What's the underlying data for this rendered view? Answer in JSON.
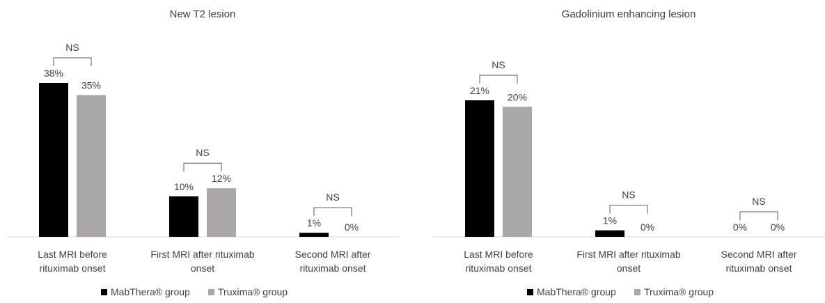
{
  "chart_data": [
    {
      "type": "bar",
      "title": "New T2 lesion",
      "categories": [
        "Last MRI before rituximab onset",
        "First MRI after rituximab onset",
        "Second MRI after rituximab onset"
      ],
      "category_lines": [
        [
          "Last MRI before",
          "rituximab onset"
        ],
        [
          "First MRI after rituximab",
          "onset"
        ],
        [
          "Second MRI after",
          "rituximab onset"
        ]
      ],
      "series": [
        {
          "name": "MabThera® group",
          "values": [
            38,
            10,
            1
          ],
          "labels": [
            "38%",
            "10%",
            "1%"
          ],
          "color": "#000000"
        },
        {
          "name": "Truxima® group",
          "values": [
            35,
            12,
            0
          ],
          "labels": [
            "35%",
            "12%",
            "0%"
          ],
          "color": "#ABA7A7"
        }
      ],
      "significance": [
        "NS",
        "NS",
        "NS"
      ],
      "unit": "%",
      "legend_position": "bottom",
      "grid": false,
      "ylim": [
        0,
        38
      ]
    },
    {
      "type": "bar",
      "title": "Gadolinium enhancing lesion",
      "categories": [
        "Last MRI before rituximab onset",
        "First MRI after rituximab onset",
        "Second MRI after rituximab onset"
      ],
      "category_lines": [
        [
          "Last MRI before",
          "rituximab onset"
        ],
        [
          "First MRI after rituximab",
          "onset"
        ],
        [
          "Second MRI after",
          "rituximab onset"
        ]
      ],
      "series": [
        {
          "name": "MabThera® group",
          "values": [
            21,
            1,
            0
          ],
          "labels": [
            "21%",
            "1%",
            "0%"
          ],
          "color": "#000000"
        },
        {
          "name": "Truxima® group",
          "values": [
            20,
            0,
            0
          ],
          "labels": [
            "20%",
            "0%",
            "0%"
          ],
          "color": "#ABA7A7"
        }
      ],
      "significance": [
        "NS",
        "NS",
        "NS"
      ],
      "unit": "%",
      "legend_position": "bottom",
      "grid": false,
      "ylim": [
        0,
        21
      ]
    }
  ]
}
